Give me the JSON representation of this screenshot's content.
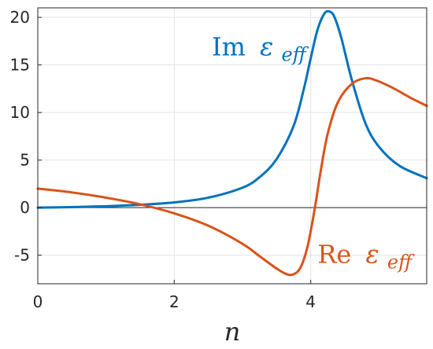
{
  "chart_data": {
    "type": "line",
    "title": "",
    "xlabel": "n",
    "ylabel": "",
    "xlim": [
      0,
      5.7
    ],
    "ylim": [
      -8,
      21
    ],
    "xticks": [
      0,
      2,
      4
    ],
    "yticks": [
      -5,
      0,
      5,
      10,
      15,
      20
    ],
    "xtick_labels": [
      "0",
      "2",
      "4"
    ],
    "ytick_labels": [
      "-5",
      "0",
      "5",
      "10",
      "15",
      "20"
    ],
    "grid": true,
    "zero_line": true,
    "series": [
      {
        "name": "Im ε_eff",
        "label_parts": {
          "prefix": "Im",
          "symbol": "ε",
          "subscript": "eff"
        },
        "color": "#0072BD",
        "label_anchor": [
          2.55,
          16.0
        ],
        "x": [
          0,
          0.5,
          1.0,
          1.5,
          2.0,
          2.5,
          3.0,
          3.25,
          3.5,
          3.75,
          3.9,
          4.0,
          4.1,
          4.2,
          4.28,
          4.35,
          4.45,
          4.6,
          4.8,
          5.0,
          5.3,
          5.7
        ],
        "y": [
          0,
          0.06,
          0.15,
          0.3,
          0.55,
          1.05,
          2.1,
          3.2,
          5.1,
          8.6,
          12.5,
          15.7,
          18.7,
          20.4,
          20.6,
          20.0,
          17.8,
          13.5,
          8.9,
          6.4,
          4.4,
          3.1
        ]
      },
      {
        "name": "Re ε_eff",
        "label_parts": {
          "prefix": "Re",
          "symbol": "ε",
          "subscript": "eff"
        },
        "color": "#D95319",
        "label_anchor": [
          4.1,
          -5.8
        ],
        "x": [
          0,
          0.5,
          1.0,
          1.5,
          2.0,
          2.5,
          3.0,
          3.25,
          3.5,
          3.65,
          3.75,
          3.85,
          3.95,
          4.05,
          4.15,
          4.25,
          4.4,
          4.6,
          4.8,
          4.95,
          5.2,
          5.45,
          5.7
        ],
        "y": [
          2.0,
          1.6,
          1.05,
          0.35,
          -0.6,
          -1.9,
          -3.8,
          -5.1,
          -6.4,
          -7.0,
          -7.0,
          -6.3,
          -4.2,
          -0.5,
          4.0,
          7.8,
          11.1,
          13.0,
          13.6,
          13.4,
          12.6,
          11.6,
          10.7
        ]
      }
    ]
  }
}
